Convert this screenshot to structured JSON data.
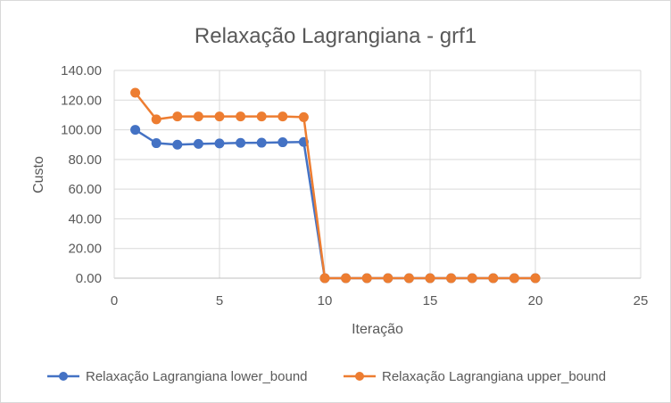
{
  "chart_data": {
    "type": "scatter",
    "title": "Relaxação Lagrangiana - grf1",
    "xlabel": "Iteração",
    "ylabel": "Custo",
    "xlim": [
      0,
      25
    ],
    "ylim": [
      0,
      140
    ],
    "xticks": [
      0,
      5,
      10,
      15,
      20,
      25
    ],
    "yticks": [
      "0.00",
      "20.00",
      "40.00",
      "60.00",
      "80.00",
      "100.00",
      "120.00",
      "140.00"
    ],
    "grid": true,
    "legend_position": "bottom",
    "series": [
      {
        "name": "Relaxação Lagrangiana lower_bound",
        "color": "#4472C4",
        "x": [
          1,
          2,
          3,
          4,
          5,
          6,
          7,
          8,
          9,
          10,
          11,
          12,
          13,
          14,
          15,
          16,
          17,
          18,
          19,
          20
        ],
        "y": [
          100,
          91,
          90,
          90.5,
          90.8,
          91.2,
          91.3,
          91.6,
          91.8,
          0,
          0,
          0,
          0,
          0,
          0,
          0,
          0,
          0,
          0,
          0
        ]
      },
      {
        "name": "Relaxação Lagrangiana upper_bound",
        "color": "#ED7D31",
        "x": [
          1,
          2,
          3,
          4,
          5,
          6,
          7,
          8,
          9,
          10,
          11,
          12,
          13,
          14,
          15,
          16,
          17,
          18,
          19,
          20
        ],
        "y": [
          125,
          107,
          109,
          109,
          109,
          109,
          109,
          109,
          108.5,
          0,
          0,
          0,
          0,
          0,
          0,
          0,
          0,
          0,
          0,
          0
        ]
      }
    ]
  }
}
